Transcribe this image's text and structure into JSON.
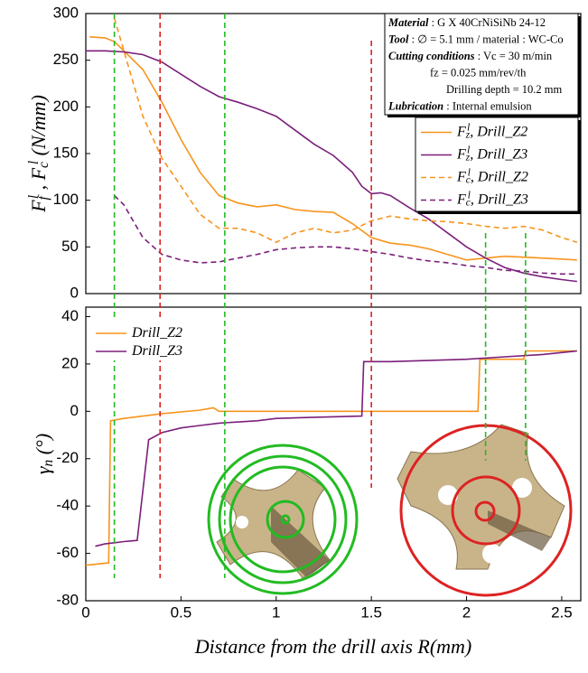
{
  "chart_data": [
    {
      "type": "line",
      "ylim": [
        0,
        300
      ],
      "yticks": [
        0,
        50,
        100,
        150,
        200,
        250,
        300
      ],
      "xlim": [
        0,
        2.6
      ],
      "ylabel": [
        {
          "text": "F"
        },
        {
          "sub": "f"
        },
        {
          "sup": "l"
        },
        {
          "text": " ,  F"
        },
        {
          "sub": "c"
        },
        {
          "sup": "l"
        },
        {
          "text": " (N/mm)"
        }
      ],
      "info": [
        {
          "label": "Material",
          "text": " : G X 40CrNiSiNb 24-12"
        },
        {
          "label": "Tool",
          "text": " : ∅ = 5.1 mm / material : WC-Co"
        },
        {
          "label": "Cutting conditions",
          "text": " : Vc = 30 m/min"
        },
        {
          "text": "fz = 0.025 mm/rev/th"
        },
        {
          "text": "Drilling depth = 10.2 mm"
        },
        {
          "label": "Lubrication",
          "text": " : Internal emulsion"
        }
      ],
      "series": [
        {
          "name": [
            {
              "text": "F"
            },
            {
              "sub": "z"
            },
            {
              "sup": "l"
            },
            {
              "text": ", Drill_Z2"
            }
          ],
          "color": "#f7941d",
          "dashed": false,
          "x": [
            0.02,
            0.1,
            0.15,
            0.2,
            0.3,
            0.4,
            0.5,
            0.6,
            0.7,
            0.8,
            0.9,
            1.0,
            1.1,
            1.2,
            1.3,
            1.4,
            1.5,
            1.6,
            1.7,
            1.8,
            1.9,
            2.0,
            2.1,
            2.2,
            2.3,
            2.4,
            2.5,
            2.58
          ],
          "values": [
            275,
            274,
            270,
            260,
            240,
            205,
            165,
            130,
            105,
            97,
            93,
            95,
            90,
            88,
            87,
            75,
            60,
            54,
            52,
            48,
            42,
            36,
            38,
            40,
            39,
            38,
            37,
            36
          ]
        },
        {
          "name": [
            {
              "text": "F"
            },
            {
              "sub": "z"
            },
            {
              "sup": "l"
            },
            {
              "text": ", Drill_Z3"
            }
          ],
          "color": "#7b1f7b",
          "dashed": false,
          "x": [
            0.0,
            0.1,
            0.2,
            0.3,
            0.4,
            0.5,
            0.6,
            0.7,
            0.8,
            0.9,
            1.0,
            1.1,
            1.2,
            1.3,
            1.4,
            1.45,
            1.5,
            1.55,
            1.6,
            1.7,
            1.8,
            1.9,
            2.0,
            2.1,
            2.2,
            2.3,
            2.4,
            2.5,
            2.58
          ],
          "values": [
            260,
            260,
            259,
            256,
            248,
            235,
            222,
            211,
            205,
            198,
            190,
            175,
            160,
            148,
            130,
            115,
            107,
            108,
            105,
            92,
            80,
            65,
            50,
            38,
            28,
            22,
            18,
            15,
            13
          ]
        },
        {
          "name": [
            {
              "text": "F"
            },
            {
              "sub": "c"
            },
            {
              "sup": "l"
            },
            {
              "text": ", Drill_Z2"
            }
          ],
          "color": "#f7941d",
          "dashed": true,
          "x": [
            0.15,
            0.2,
            0.3,
            0.4,
            0.5,
            0.6,
            0.7,
            0.8,
            0.9,
            1.0,
            1.1,
            1.2,
            1.3,
            1.4,
            1.5,
            1.6,
            1.7,
            1.8,
            1.9,
            2.0,
            2.1,
            2.2,
            2.3,
            2.4,
            2.5,
            2.58
          ],
          "values": [
            295,
            260,
            190,
            145,
            115,
            85,
            70,
            70,
            65,
            55,
            65,
            70,
            65,
            68,
            78,
            83,
            80,
            78,
            77,
            75,
            72,
            70,
            72,
            68,
            60,
            55
          ]
        },
        {
          "name": [
            {
              "text": "F"
            },
            {
              "sub": "c"
            },
            {
              "sup": "l"
            },
            {
              "text": ", Drill_Z3"
            }
          ],
          "color": "#7b1f7b",
          "dashed": true,
          "x": [
            0.15,
            0.2,
            0.3,
            0.4,
            0.5,
            0.6,
            0.7,
            0.8,
            0.9,
            1.0,
            1.1,
            1.2,
            1.3,
            1.4,
            1.5,
            1.6,
            1.7,
            1.8,
            1.9,
            2.0,
            2.1,
            2.2,
            2.3,
            2.4,
            2.5,
            2.58
          ],
          "values": [
            105,
            95,
            60,
            42,
            36,
            33,
            34,
            38,
            42,
            47,
            49,
            50,
            50,
            48,
            45,
            42,
            38,
            35,
            33,
            30,
            28,
            25,
            24,
            22,
            21,
            21
          ]
        }
      ]
    },
    {
      "type": "line",
      "ylim": [
        -80,
        44
      ],
      "yticks": [
        -80,
        -60,
        -40,
        -20,
        0,
        20,
        40
      ],
      "xlim": [
        0,
        2.6
      ],
      "xticks": [
        0,
        0.5,
        1,
        1.5,
        2,
        2.5
      ],
      "xlabel": "Distance from the drill axis R(mm)",
      "ylabel": [
        {
          "text": "γ"
        },
        {
          "sub": "n"
        },
        {
          "text": " (°)"
        }
      ],
      "vlines": [
        {
          "x": 0.15,
          "color": "#22bb22"
        },
        {
          "x": 0.39,
          "color": "#dd2222"
        },
        {
          "x": 0.73,
          "color": "#22bb22"
        },
        {
          "x": 1.5,
          "color": "#dd2222"
        },
        {
          "x": 2.1,
          "color": "#22bb22"
        },
        {
          "x": 2.31,
          "color": "#22bb22"
        }
      ],
      "series": [
        {
          "name": [
            {
              "text": "Drill_Z2"
            }
          ],
          "color": "#f7941d",
          "dashed": false,
          "x": [
            0.0,
            0.12,
            0.13,
            0.2,
            0.4,
            0.6,
            0.67,
            0.7,
            1.0,
            1.5,
            2.06,
            2.07,
            2.3,
            2.31,
            2.58
          ],
          "values": [
            -65,
            -64,
            -4,
            -3,
            -1,
            0.5,
            1.5,
            0,
            0,
            0,
            0,
            22,
            22,
            25.5,
            25.5
          ]
        },
        {
          "name": [
            {
              "text": "Drill_Z3"
            }
          ],
          "color": "#7b1f7b",
          "dashed": false,
          "x": [
            0.05,
            0.1,
            0.2,
            0.27,
            0.33,
            0.4,
            0.5,
            0.6,
            0.7,
            0.9,
            1.0,
            1.2,
            1.45,
            1.46,
            1.6,
            2.0,
            2.2,
            2.4,
            2.58
          ],
          "values": [
            -57,
            -56,
            -55,
            -54.5,
            -12,
            -9,
            -7,
            -6,
            -5,
            -4,
            -3,
            -2.5,
            -2,
            21,
            21,
            22,
            23,
            24,
            25.5
          ]
        }
      ]
    }
  ]
}
